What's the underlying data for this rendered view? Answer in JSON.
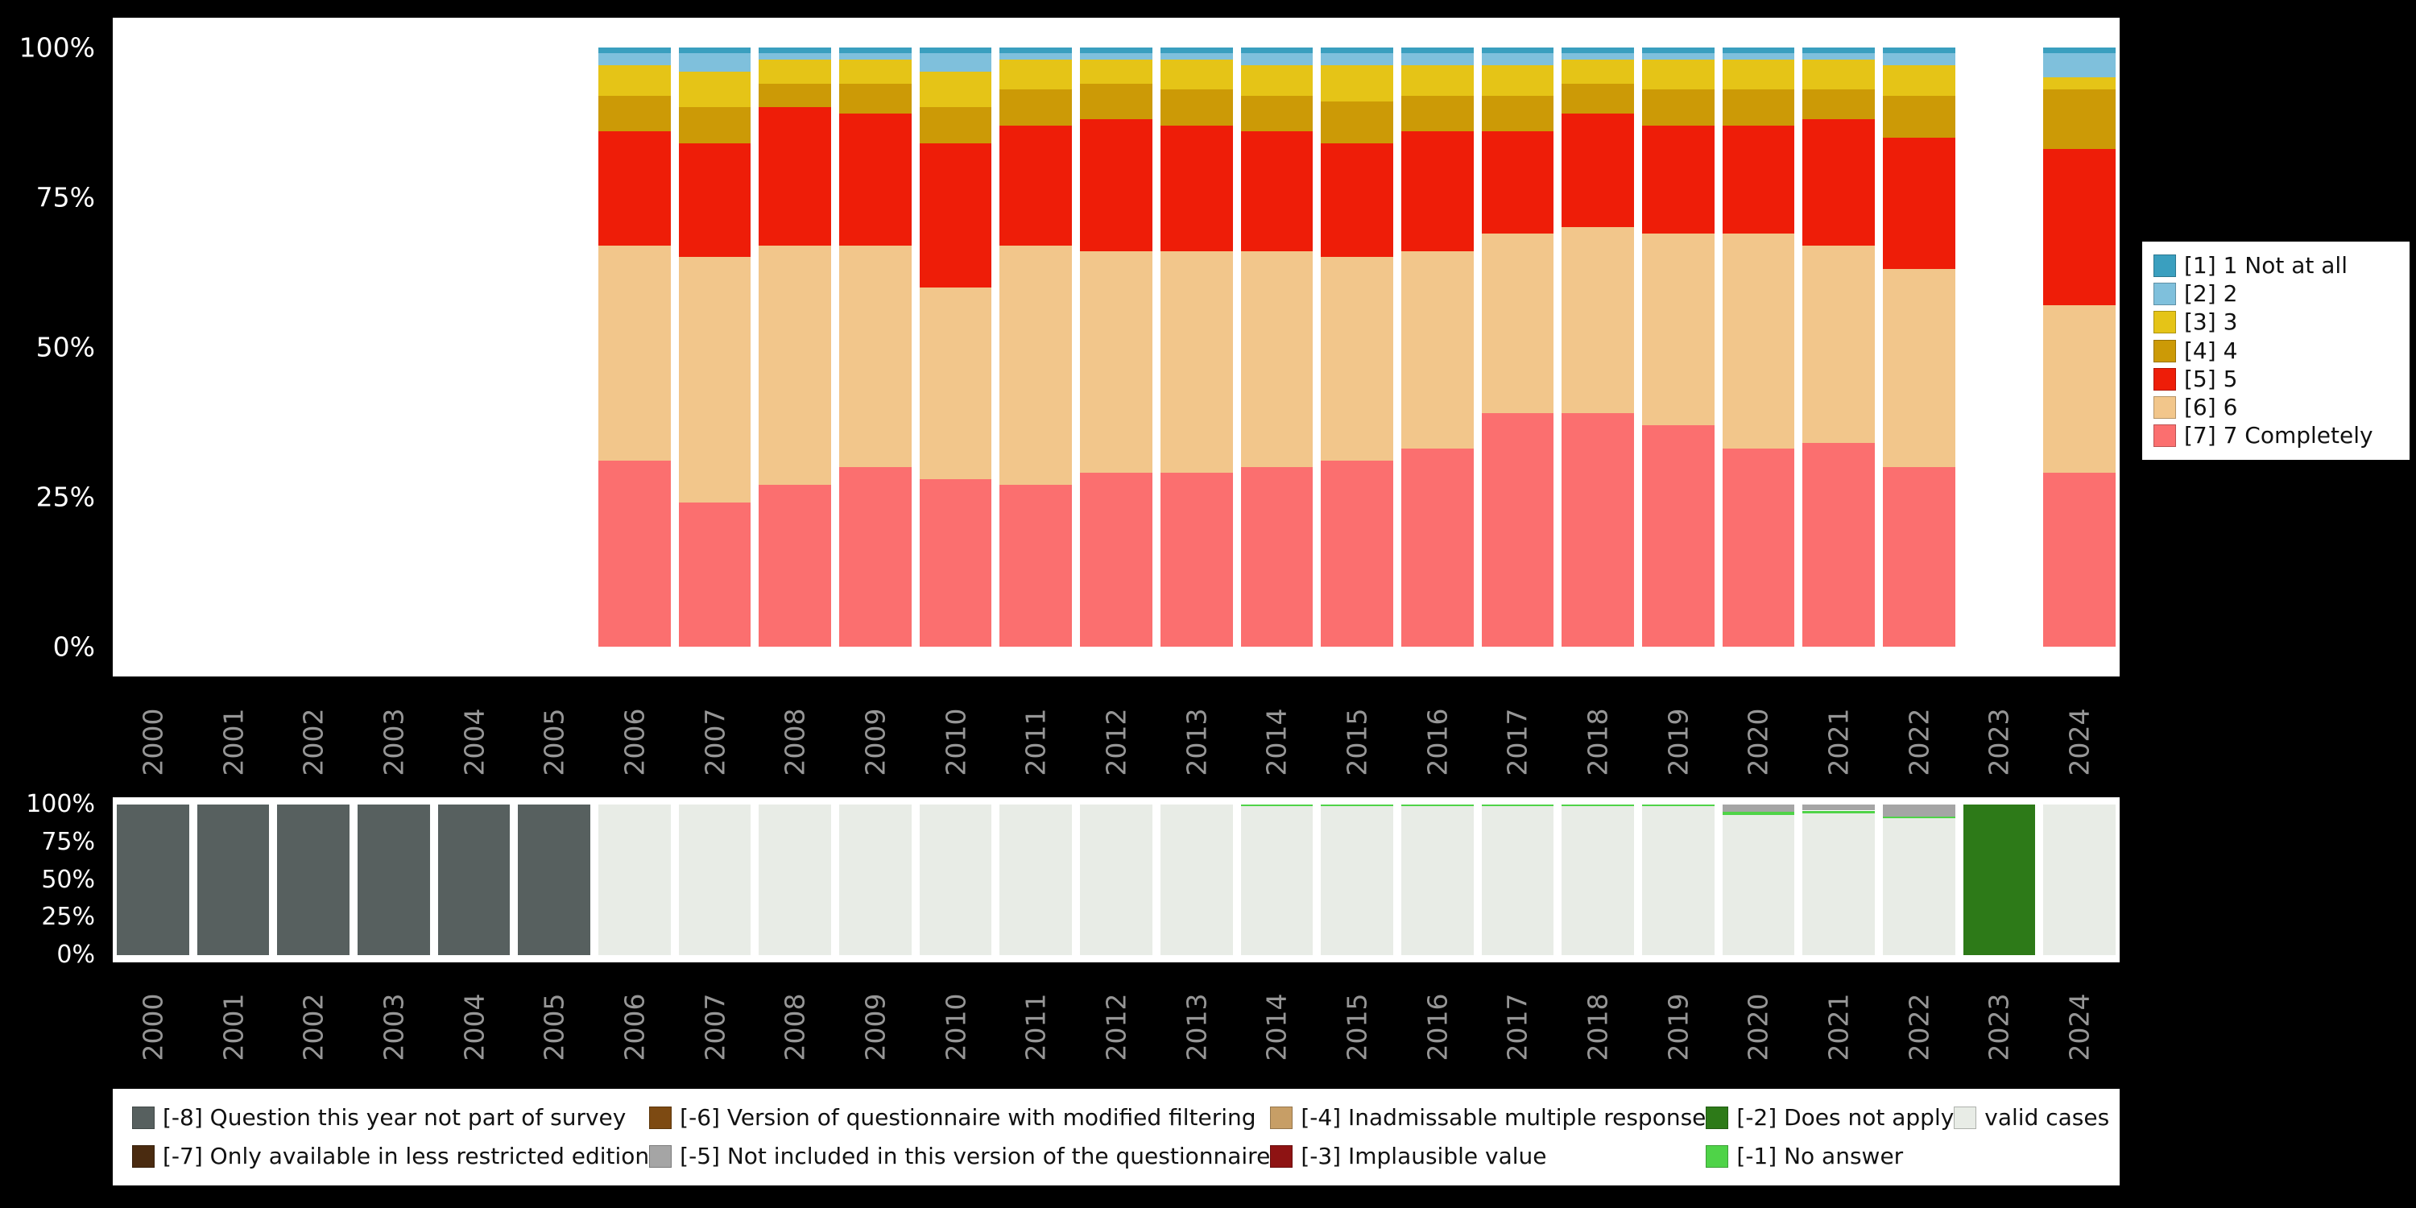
{
  "page": {
    "background": "#000000",
    "panel_background": "#ffffff",
    "axis_text_color": "#ffffff",
    "year_text_color": "#969696"
  },
  "chart_data": [
    {
      "id": "distribution",
      "type": "bar",
      "stacking": "percent",
      "orientation": "vertical",
      "grid": false,
      "legend_position": "right",
      "ylim": [
        0,
        100
      ],
      "categories": [
        "2000",
        "2001",
        "2002",
        "2003",
        "2004",
        "2005",
        "2006",
        "2007",
        "2008",
        "2009",
        "2010",
        "2011",
        "2012",
        "2013",
        "2014",
        "2015",
        "2016",
        "2017",
        "2018",
        "2019",
        "2020",
        "2021",
        "2022",
        "2023",
        "2024"
      ],
      "y_ticks": [
        {
          "v": 0,
          "label": "0%"
        },
        {
          "v": 25,
          "label": "25%"
        },
        {
          "v": 50,
          "label": "50%"
        },
        {
          "v": 75,
          "label": "75%"
        },
        {
          "v": 100,
          "label": "100%"
        }
      ],
      "series": [
        {
          "name": "[1] 1 Not at all",
          "color": "#3a9fbf",
          "values": [
            null,
            null,
            null,
            null,
            null,
            null,
            1,
            1,
            1,
            1,
            1,
            1,
            1,
            1,
            1,
            1,
            1,
            1,
            1,
            1,
            1,
            1,
            1,
            null,
            1
          ]
        },
        {
          "name": "[2] 2",
          "color": "#7fc0dc",
          "values": [
            null,
            null,
            null,
            null,
            null,
            null,
            2,
            3,
            1,
            1,
            3,
            1,
            1,
            1,
            2,
            2,
            2,
            2,
            1,
            1,
            1,
            1,
            2,
            null,
            4
          ]
        },
        {
          "name": "[3] 3",
          "color": "#e5c417",
          "values": [
            null,
            null,
            null,
            null,
            null,
            null,
            5,
            6,
            4,
            4,
            6,
            5,
            4,
            5,
            5,
            6,
            5,
            5,
            4,
            5,
            5,
            5,
            5,
            null,
            2
          ]
        },
        {
          "name": "[4] 4",
          "color": "#cc9a06",
          "values": [
            null,
            null,
            null,
            null,
            null,
            null,
            6,
            6,
            4,
            5,
            6,
            6,
            6,
            6,
            6,
            7,
            6,
            6,
            5,
            6,
            6,
            5,
            7,
            null,
            10
          ]
        },
        {
          "name": "[5] 5",
          "color": "#ee1d08",
          "values": [
            null,
            null,
            null,
            null,
            null,
            null,
            19,
            19,
            23,
            22,
            24,
            20,
            22,
            21,
            20,
            19,
            20,
            17,
            19,
            18,
            18,
            21,
            22,
            null,
            26
          ]
        },
        {
          "name": "[6] 6",
          "color": "#f2c68b",
          "values": [
            null,
            null,
            null,
            null,
            null,
            null,
            36,
            41,
            40,
            37,
            32,
            40,
            37,
            37,
            36,
            34,
            33,
            30,
            31,
            32,
            36,
            33,
            33,
            null,
            28
          ]
        },
        {
          "name": "[7] 7 Completely",
          "color": "#fb6f6f",
          "values": [
            null,
            null,
            null,
            null,
            null,
            null,
            31,
            24,
            27,
            30,
            28,
            27,
            29,
            29,
            30,
            31,
            33,
            39,
            39,
            37,
            33,
            34,
            30,
            null,
            29
          ]
        }
      ]
    },
    {
      "id": "missings",
      "type": "bar",
      "stacking": "percent",
      "orientation": "vertical",
      "grid": false,
      "legend_position": "bottom",
      "legend_rows": 2,
      "ylim": [
        0,
        100
      ],
      "categories": [
        "2000",
        "2001",
        "2002",
        "2003",
        "2004",
        "2005",
        "2006",
        "2007",
        "2008",
        "2009",
        "2010",
        "2011",
        "2012",
        "2013",
        "2014",
        "2015",
        "2016",
        "2017",
        "2018",
        "2019",
        "2020",
        "2021",
        "2022",
        "2023",
        "2024"
      ],
      "y_ticks": [
        {
          "v": 0,
          "label": "0%"
        },
        {
          "v": 25,
          "label": "25%"
        },
        {
          "v": 50,
          "label": "50%"
        },
        {
          "v": 75,
          "label": "75%"
        },
        {
          "v": 100,
          "label": "100%"
        }
      ],
      "series": [
        {
          "name": "[-8] Question this year not part of survey",
          "color": "#57605f",
          "values": [
            100,
            100,
            100,
            100,
            100,
            100,
            null,
            null,
            null,
            null,
            null,
            null,
            null,
            null,
            null,
            null,
            null,
            null,
            null,
            null,
            null,
            null,
            null,
            null,
            null
          ]
        },
        {
          "name": "[-7] Only available in less restricted edition",
          "color": "#4a2b10",
          "values": [
            null,
            null,
            null,
            null,
            null,
            null,
            null,
            null,
            null,
            null,
            null,
            null,
            null,
            null,
            null,
            null,
            null,
            null,
            null,
            null,
            null,
            null,
            null,
            null,
            null
          ]
        },
        {
          "name": "[-6] Version of questionnaire with modified filtering",
          "color": "#7d4a12",
          "values": [
            null,
            null,
            null,
            null,
            null,
            null,
            null,
            null,
            null,
            null,
            null,
            null,
            null,
            null,
            null,
            null,
            null,
            null,
            null,
            null,
            null,
            null,
            null,
            null,
            null
          ]
        },
        {
          "name": "[-5] Not included in this version of the questionnaire",
          "color": "#a5a5a5",
          "values": [
            null,
            null,
            null,
            null,
            null,
            null,
            null,
            null,
            null,
            null,
            null,
            null,
            null,
            null,
            null,
            null,
            null,
            null,
            null,
            null,
            5,
            4,
            8,
            null,
            null
          ]
        },
        {
          "name": "[-4] Inadmissable multiple response",
          "color": "#c79e66",
          "values": [
            null,
            null,
            null,
            null,
            null,
            null,
            null,
            null,
            null,
            null,
            null,
            null,
            null,
            null,
            null,
            null,
            null,
            null,
            null,
            null,
            null,
            null,
            null,
            null,
            null
          ]
        },
        {
          "name": "[-3] Implausible value",
          "color": "#8e1313",
          "values": [
            null,
            null,
            null,
            null,
            null,
            null,
            null,
            null,
            null,
            null,
            null,
            null,
            null,
            null,
            null,
            null,
            null,
            null,
            null,
            null,
            null,
            null,
            null,
            null,
            null
          ]
        },
        {
          "name": "[-2] Does not apply",
          "color": "#2d7a18",
          "values": [
            null,
            null,
            null,
            null,
            null,
            null,
            null,
            null,
            null,
            null,
            null,
            null,
            null,
            null,
            null,
            null,
            null,
            null,
            null,
            null,
            null,
            null,
            null,
            100,
            null
          ]
        },
        {
          "name": "[-1] No answer",
          "color": "#4fd348",
          "values": [
            null,
            null,
            null,
            null,
            null,
            null,
            null,
            null,
            null,
            null,
            null,
            null,
            null,
            null,
            1,
            1,
            1,
            1,
            1,
            1,
            2,
            2,
            1,
            null,
            null
          ]
        },
        {
          "name": "valid cases",
          "color": "#e8ece6",
          "values": [
            null,
            null,
            null,
            null,
            null,
            null,
            100,
            100,
            100,
            100,
            100,
            100,
            100,
            100,
            99,
            99,
            99,
            99,
            99,
            99,
            93,
            94,
            91,
            null,
            100
          ]
        }
      ]
    }
  ]
}
